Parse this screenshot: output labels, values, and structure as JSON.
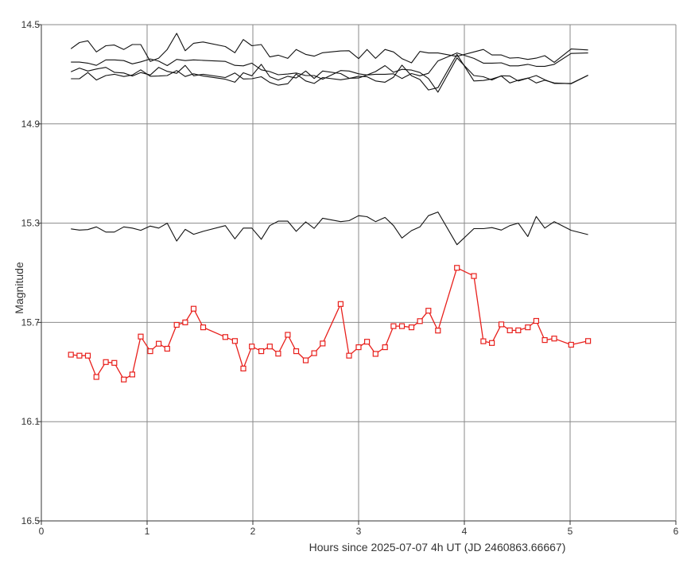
{
  "chart_data": {
    "type": "line",
    "title": "",
    "xlabel": "Hours since 2025-07-07 4h UT (JD 2460863.66667)",
    "ylabel": "Magnitude",
    "xlim": [
      0,
      6
    ],
    "ylim": [
      16.5,
      14.5
    ],
    "y_inverted": true,
    "grid": true,
    "legend": "none",
    "x_ticks": [
      "0",
      "1",
      "2",
      "3",
      "4",
      "5",
      "6"
    ],
    "y_ticks": [
      "14.5",
      "14.9",
      "15.3",
      "15.7",
      "16.1",
      "16.5"
    ],
    "colors": {
      "target": "#e8201c",
      "comparison": "#111111",
      "grid": "#8a8a8a",
      "axis": "#333333"
    },
    "x": [
      0.28,
      0.36,
      0.44,
      0.52,
      0.61,
      0.69,
      0.78,
      0.86,
      0.94,
      1.03,
      1.11,
      1.19,
      1.28,
      1.36,
      1.44,
      1.53,
      1.74,
      1.83,
      1.91,
      1.99,
      2.08,
      2.16,
      2.24,
      2.33,
      2.41,
      2.5,
      2.58,
      2.66,
      2.83,
      2.91,
      3.0,
      3.08,
      3.16,
      3.25,
      3.33,
      3.41,
      3.5,
      3.58,
      3.66,
      3.75,
      3.93,
      4.09,
      4.18,
      4.26,
      4.35,
      4.43,
      4.51,
      4.6,
      4.68,
      4.76,
      4.85,
      5.01,
      5.17
    ],
    "series": [
      {
        "role": "target",
        "marker": "square",
        "values": [
          15.83,
          15.834,
          15.834,
          15.92,
          15.86,
          15.863,
          15.93,
          15.91,
          15.757,
          15.816,
          15.786,
          15.806,
          15.71,
          15.7,
          15.645,
          15.72,
          15.759,
          15.775,
          15.886,
          15.797,
          15.816,
          15.797,
          15.826,
          15.75,
          15.816,
          15.853,
          15.824,
          15.785,
          15.626,
          15.834,
          15.8,
          15.778,
          15.827,
          15.8,
          15.715,
          15.715,
          15.72,
          15.695,
          15.653,
          15.733,
          15.48,
          15.513,
          15.776,
          15.783,
          15.708,
          15.732,
          15.732,
          15.72,
          15.694,
          15.771,
          15.765,
          15.79,
          15.775
        ]
      },
      {
        "role": "comparison",
        "values": [
          14.597,
          14.572,
          14.565,
          14.61,
          14.585,
          14.582,
          14.6,
          14.58,
          14.58,
          14.648,
          14.635,
          14.6,
          14.535,
          14.605,
          14.575,
          14.57,
          14.588,
          14.613,
          14.56,
          14.585,
          14.58,
          14.63,
          14.623,
          14.636,
          14.6,
          14.62,
          14.627,
          14.613,
          14.606,
          14.605,
          14.637,
          14.6,
          14.636,
          14.6,
          14.61,
          14.637,
          14.654,
          14.608,
          14.614,
          14.614,
          14.628,
          14.61,
          14.6,
          14.622,
          14.622,
          14.635,
          14.633,
          14.64,
          14.635,
          14.625,
          14.652,
          14.598,
          14.602
        ]
      },
      {
        "role": "comparison",
        "values": [
          14.651,
          14.651,
          14.655,
          14.664,
          14.642,
          14.642,
          14.645,
          14.658,
          14.65,
          14.638,
          14.647,
          14.665,
          14.64,
          14.645,
          14.642,
          14.644,
          14.648,
          14.664,
          14.666,
          14.655,
          14.682,
          14.689,
          14.702,
          14.699,
          14.695,
          14.705,
          14.705,
          14.72,
          14.685,
          14.687,
          14.698,
          14.703,
          14.7,
          14.7,
          14.698,
          14.717,
          14.697,
          14.706,
          14.696,
          14.646,
          14.614,
          14.636,
          14.655,
          14.655,
          14.654,
          14.666,
          14.666,
          14.66,
          14.668,
          14.668,
          14.66,
          14.616,
          14.614
        ]
      },
      {
        "role": "comparison",
        "values": [
          14.69,
          14.675,
          14.687,
          14.679,
          14.672,
          14.692,
          14.695,
          14.707,
          14.693,
          14.703,
          14.672,
          14.688,
          14.696,
          14.664,
          14.706,
          14.7,
          14.713,
          14.695,
          14.719,
          14.718,
          14.71,
          14.733,
          14.744,
          14.738,
          14.699,
          14.727,
          14.737,
          14.713,
          14.722,
          14.717,
          14.708,
          14.71,
          14.727,
          14.732,
          14.712,
          14.663,
          14.706,
          14.721,
          14.763,
          14.754,
          14.62,
          14.727,
          14.725,
          14.719,
          14.707,
          14.735,
          14.724,
          14.715,
          14.735,
          14.724,
          14.735,
          14.738,
          14.704
        ]
      },
      {
        "role": "comparison",
        "values": [
          14.718,
          14.718,
          14.693,
          14.723,
          14.705,
          14.7,
          14.709,
          14.703,
          14.682,
          14.708,
          14.707,
          14.705,
          14.685,
          14.709,
          14.698,
          14.707,
          14.72,
          14.732,
          14.694,
          14.706,
          14.66,
          14.71,
          14.723,
          14.708,
          14.715,
          14.687,
          14.717,
          14.687,
          14.697,
          14.716,
          14.715,
          14.703,
          14.689,
          14.665,
          14.692,
          14.68,
          14.683,
          14.693,
          14.717,
          14.772,
          14.634,
          14.705,
          14.71,
          14.723,
          14.706,
          14.707,
          14.727,
          14.716,
          14.705,
          14.722,
          14.737,
          14.737,
          14.704
        ]
      },
      {
        "role": "comparison",
        "values": [
          15.323,
          15.328,
          15.326,
          15.315,
          15.336,
          15.336,
          15.315,
          15.32,
          15.329,
          15.312,
          15.32,
          15.3,
          15.372,
          15.325,
          15.345,
          15.333,
          15.31,
          15.363,
          15.32,
          15.32,
          15.365,
          15.31,
          15.292,
          15.292,
          15.333,
          15.295,
          15.321,
          15.28,
          15.294,
          15.29,
          15.27,
          15.274,
          15.294,
          15.277,
          15.31,
          15.36,
          15.33,
          15.315,
          15.27,
          15.255,
          15.387,
          15.322,
          15.322,
          15.318,
          15.328,
          15.31,
          15.3,
          15.354,
          15.273,
          15.32,
          15.294,
          15.329,
          15.346
        ]
      }
    ]
  }
}
